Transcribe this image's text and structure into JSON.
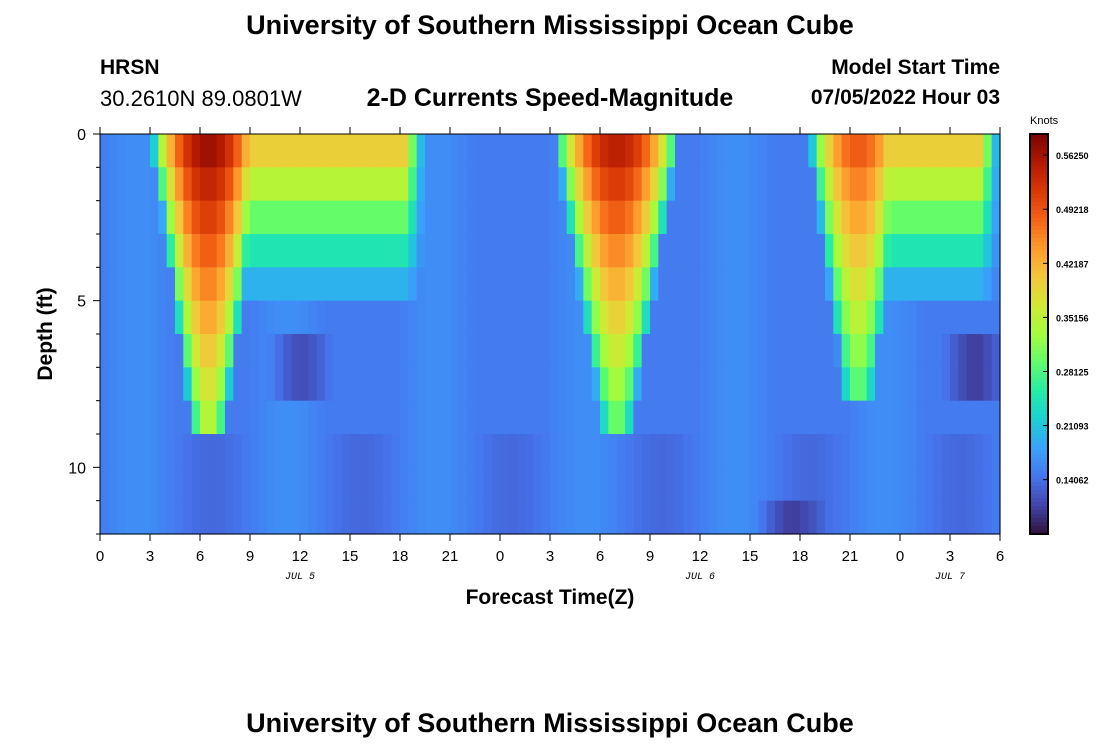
{
  "page": {
    "title": "University of Southern Mississippi Ocean Cube",
    "bottom_title": "University of Southern Mississippi Ocean Cube",
    "station": "HRSN",
    "coordinates": "30.2610N  89.0801W",
    "subtitle": "2-D Currents Speed-Magnitude",
    "model_start_label": "Model Start Time",
    "model_start_value": "07/05/2022 Hour 03"
  },
  "chart_data": {
    "type": "heatmap",
    "title": "2-D Currents Speed-Magnitude",
    "xlabel": "Forecast Time(Z)",
    "ylabel": "Depth (ft)",
    "ylim": [
      0,
      12
    ],
    "y_inverted": true,
    "x_ticks": [
      "0",
      "3",
      "6",
      "9",
      "12",
      "15",
      "18",
      "21",
      "0",
      "3",
      "6",
      "9",
      "12",
      "15",
      "18",
      "21",
      "0",
      "3",
      "6"
    ],
    "x_range_hours": [
      0,
      54
    ],
    "y_ticks": [
      "0",
      "5",
      "10"
    ],
    "y_tick_values": [
      0,
      5,
      10
    ],
    "date_labels": [
      {
        "text": "JUL 5",
        "hour": 12
      },
      {
        "text": "JUL 6",
        "hour": 36
      },
      {
        "text": "JUL 7",
        "hour": 51
      }
    ],
    "colorbar": {
      "unit": "Knots",
      "min": 0.07,
      "max": 0.59,
      "tick_labels": [
        "0.56250",
        "0.49218",
        "0.42187",
        "0.35156",
        "0.28125",
        "0.21093",
        "0.14062"
      ],
      "tick_values": [
        0.5625,
        0.49218,
        0.42187,
        0.35156,
        0.28125,
        0.21093,
        0.14062
      ]
    },
    "grid": {
      "hours_per_column": 0.5,
      "depth_rows": [
        0.5,
        1.5,
        2.5,
        3.5,
        4.5,
        5.5,
        6.5,
        7.5,
        8.5,
        9.5,
        10.5,
        11.5
      ],
      "ebb_events": [
        {
          "center_hour": 6.5,
          "half_width_hours": 3.5,
          "peak_knots": 0.58,
          "near_bottom_knots": 0.33,
          "reach_ft": 9.2,
          "upper_core_end_hour": 19.5
        },
        {
          "center_hour": 31.0,
          "half_width_hours": 3.8,
          "peak_knots": 0.56,
          "near_bottom_knots": 0.3,
          "reach_ft": 8.6,
          "upper_core_end_hour": 33.5
        },
        {
          "center_hour": 45.5,
          "half_width_hours": 3.0,
          "peak_knots": 0.5,
          "near_bottom_knots": 0.27,
          "reach_ft": 8.4,
          "upper_core_end_hour": 54.0
        }
      ],
      "background_knots": 0.15,
      "low_spots": [
        {
          "hour": 12,
          "depth_ft": 7.0,
          "knots": 0.08
        },
        {
          "hour": 52.5,
          "depth_ft": 7.0,
          "knots": 0.07
        },
        {
          "hour": 41.5,
          "depth_ft": 11.8,
          "knots": 0.09
        }
      ]
    }
  },
  "colors": {
    "background": "#ffffff",
    "text": "#000000",
    "colormap": [
      "#30123b",
      "#4145ab",
      "#4675ed",
      "#39a2fc",
      "#1bcfd4",
      "#24eca6",
      "#61fc6c",
      "#a4fc3b",
      "#d1e834",
      "#f3c63a",
      "#fe9b2d",
      "#f36315",
      "#d93806",
      "#b11901",
      "#7a0402"
    ]
  }
}
